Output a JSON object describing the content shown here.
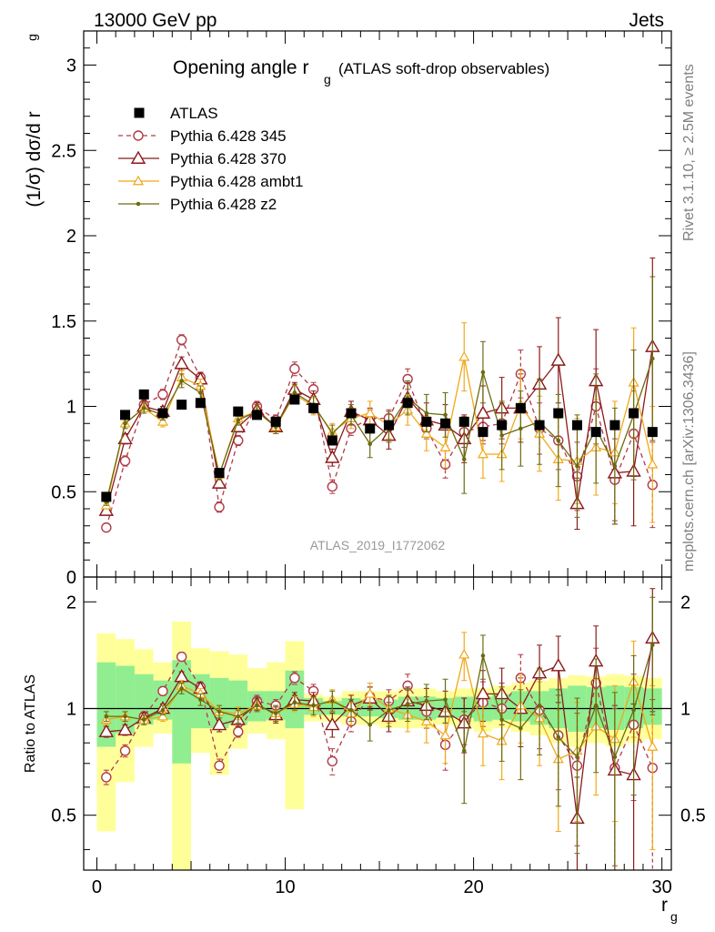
{
  "header": {
    "left": "13000 GeV pp",
    "right": "Jets",
    "side_top": "Rivet 3.1.10, ≥ 2.5M events",
    "side_bottom": "mcplots.cern.ch [arXiv:1306.3436]",
    "analysis": "ATLAS_2019_I1772062"
  },
  "colors": {
    "data": "#000000",
    "p345": "#b03a48",
    "p370": "#8b1a1a",
    "ambt1": "#f0a818",
    "z2": "#6b6b10",
    "band_inner": "#90ee90",
    "band_outer": "#ffff99"
  },
  "chart_data": [
    {
      "type": "scatter",
      "title_main": "Opening angle r",
      "title_sub": "g",
      "title_tail": "(ATLAS soft-drop observables)",
      "ylabel": "(1/σ) dσ/d r",
      "ylabel_sub": "g",
      "xlim": [
        -0.7,
        30.5
      ],
      "ylim": [
        0,
        3.2
      ],
      "yticks": [
        0,
        0.5,
        1,
        1.5,
        2,
        2.5,
        3
      ],
      "ytick_labels": [
        "0",
        "0.5",
        "1",
        "1.5",
        "2",
        "2.5",
        "3"
      ],
      "legend_position": "top-left",
      "x": [
        0.5,
        1.5,
        2.5,
        3.5,
        4.5,
        5.5,
        6.5,
        7.5,
        8.5,
        9.5,
        10.5,
        11.5,
        12.5,
        13.5,
        14.5,
        15.5,
        16.5,
        17.5,
        18.5,
        19.5,
        20.5,
        21.5,
        22.5,
        23.5,
        24.5,
        25.5,
        26.5,
        27.5,
        28.5,
        29.5
      ],
      "series": [
        {
          "name": "ATLAS",
          "style": "data",
          "values": [
            0.47,
            0.95,
            1.07,
            0.96,
            1.01,
            1.02,
            0.61,
            0.97,
            0.95,
            0.91,
            1.04,
            0.99,
            0.8,
            0.96,
            0.87,
            0.89,
            1.02,
            0.91,
            0.9,
            0.91,
            0.85,
            0.89,
            0.99,
            0.89,
            0.96,
            0.89,
            0.85,
            0.89,
            0.96,
            0.85
          ]
        },
        {
          "name": "Pythia 6.428 345",
          "style": "p345",
          "values": [
            0.29,
            0.68,
            1.01,
            1.07,
            1.39,
            1.17,
            0.41,
            0.8,
            1.0,
            0.92,
            1.22,
            1.1,
            0.53,
            0.87,
            0.93,
            0.93,
            1.16,
            0.87,
            0.66,
            0.85,
            0.88,
            0.9,
            1.19,
            0.87,
            0.8,
            0.59,
            1.0,
            0.57,
            0.84,
            0.54
          ],
          "errors": [
            0.02,
            0.03,
            0.03,
            0.03,
            0.03,
            0.03,
            0.03,
            0.03,
            0.03,
            0.03,
            0.04,
            0.04,
            0.04,
            0.04,
            0.05,
            0.05,
            0.06,
            0.06,
            0.08,
            0.09,
            0.1,
            0.12,
            0.14,
            0.15,
            0.17,
            0.2,
            0.22,
            0.24,
            0.25,
            0.25
          ]
        },
        {
          "name": "Pythia 6.428 370",
          "style": "p370",
          "values": [
            0.39,
            0.81,
            1.0,
            0.97,
            1.25,
            1.16,
            0.55,
            0.88,
            0.98,
            0.88,
            1.1,
            1.04,
            0.7,
            0.97,
            0.92,
            0.83,
            1.05,
            0.92,
            0.89,
            0.81,
            0.96,
            0.99,
            0.99,
            1.13,
            1.27,
            0.43,
            1.15,
            0.61,
            0.62,
            1.35
          ],
          "errors": [
            0.02,
            0.03,
            0.03,
            0.03,
            0.04,
            0.04,
            0.03,
            0.03,
            0.04,
            0.04,
            0.04,
            0.05,
            0.05,
            0.06,
            0.07,
            0.08,
            0.09,
            0.1,
            0.12,
            0.14,
            0.16,
            0.18,
            0.2,
            0.22,
            0.25,
            0.15,
            0.3,
            0.3,
            0.32,
            0.52
          ]
        },
        {
          "name": "Pythia 6.428 ambt1",
          "style": "ambt1",
          "values": [
            0.42,
            0.9,
            0.99,
            0.91,
            1.17,
            1.12,
            0.6,
            0.93,
            0.97,
            0.88,
            1.07,
            1.0,
            0.85,
            0.93,
            0.96,
            0.89,
            0.98,
            0.84,
            0.76,
            1.29,
            0.72,
            0.72,
            1.01,
            0.84,
            0.69,
            0.68,
            0.76,
            0.73,
            1.14,
            0.66
          ],
          "errors": [
            0.02,
            0.03,
            0.03,
            0.03,
            0.04,
            0.04,
            0.03,
            0.03,
            0.04,
            0.04,
            0.05,
            0.05,
            0.05,
            0.06,
            0.07,
            0.08,
            0.09,
            0.1,
            0.12,
            0.2,
            0.14,
            0.16,
            0.2,
            0.22,
            0.24,
            0.25,
            0.28,
            0.3,
            0.32,
            0.34
          ]
        },
        {
          "name": "Pythia 6.428 z2",
          "style": "z2",
          "values": [
            0.44,
            0.9,
            0.99,
            0.95,
            1.15,
            1.08,
            0.6,
            0.92,
            0.97,
            0.88,
            1.08,
            1.01,
            0.84,
            0.95,
            0.78,
            0.88,
            1.05,
            0.96,
            0.95,
            0.69,
            1.2,
            0.83,
            0.87,
            0.91,
            0.8,
            0.65,
            0.87,
            0.65,
            0.95,
            1.28
          ],
          "errors": [
            0.02,
            0.03,
            0.03,
            0.03,
            0.04,
            0.04,
            0.03,
            0.03,
            0.04,
            0.04,
            0.05,
            0.05,
            0.05,
            0.06,
            0.08,
            0.09,
            0.1,
            0.11,
            0.13,
            0.2,
            0.18,
            0.2,
            0.22,
            0.25,
            0.27,
            0.3,
            0.32,
            0.34,
            0.38,
            0.48
          ]
        }
      ]
    },
    {
      "type": "scatter",
      "ylabel": "Ratio to ATLAS",
      "xlabel": "r",
      "xlabel_sub": "g",
      "xlim": [
        -0.7,
        30.5
      ],
      "ylim": [
        0.35,
        2.35
      ],
      "yticks": [
        0.5,
        1,
        2
      ],
      "ytick_labels": [
        "0.5",
        "1",
        "2"
      ],
      "xticks": [
        0,
        10,
        20,
        30
      ],
      "xtick_labels": [
        "0",
        "10",
        "20",
        "30"
      ],
      "x": [
        0.5,
        1.5,
        2.5,
        3.5,
        4.5,
        5.5,
        6.5,
        7.5,
        8.5,
        9.5,
        10.5,
        11.5,
        12.5,
        13.5,
        14.5,
        15.5,
        16.5,
        17.5,
        18.5,
        19.5,
        20.5,
        21.5,
        22.5,
        23.5,
        24.5,
        25.5,
        26.5,
        27.5,
        28.5,
        29.5
      ],
      "band_inner": [
        [
          0.78,
          1.35
        ],
        [
          0.85,
          1.32
        ],
        [
          0.9,
          1.25
        ],
        [
          0.93,
          1.2
        ],
        [
          0.7,
          1.37
        ],
        [
          0.88,
          1.25
        ],
        [
          0.88,
          1.22
        ],
        [
          0.9,
          1.2
        ],
        [
          0.92,
          1.12
        ],
        [
          0.93,
          1.12
        ],
        [
          0.88,
          1.28
        ],
        [
          0.96,
          1.07
        ],
        [
          0.96,
          1.05
        ],
        [
          0.95,
          1.07
        ],
        [
          0.95,
          1.06
        ],
        [
          0.94,
          1.06
        ],
        [
          0.93,
          1.08
        ],
        [
          0.93,
          1.08
        ],
        [
          0.94,
          1.07
        ],
        [
          0.94,
          1.08
        ],
        [
          0.92,
          1.08
        ],
        [
          0.93,
          1.1
        ],
        [
          0.92,
          1.12
        ],
        [
          0.9,
          1.12
        ],
        [
          0.88,
          1.14
        ],
        [
          0.86,
          1.16
        ],
        [
          0.88,
          1.15
        ],
        [
          0.87,
          1.16
        ],
        [
          0.88,
          1.15
        ],
        [
          0.9,
          1.14
        ]
      ],
      "band_outer": [
        [
          0.45,
          1.63
        ],
        [
          0.62,
          1.57
        ],
        [
          0.78,
          1.47
        ],
        [
          0.85,
          1.35
        ],
        [
          0.18,
          1.76
        ],
        [
          0.75,
          1.48
        ],
        [
          0.65,
          1.45
        ],
        [
          0.77,
          1.42
        ],
        [
          0.85,
          1.3
        ],
        [
          0.82,
          1.35
        ],
        [
          0.52,
          1.55
        ],
        [
          0.92,
          1.1
        ],
        [
          0.92,
          1.08
        ],
        [
          0.9,
          1.12
        ],
        [
          0.9,
          1.12
        ],
        [
          0.88,
          1.12
        ],
        [
          0.88,
          1.14
        ],
        [
          0.88,
          1.14
        ],
        [
          0.9,
          1.12
        ],
        [
          0.88,
          1.14
        ],
        [
          0.86,
          1.14
        ],
        [
          0.88,
          1.16
        ],
        [
          0.86,
          1.18
        ],
        [
          0.84,
          1.2
        ],
        [
          0.8,
          1.22
        ],
        [
          0.78,
          1.24
        ],
        [
          0.8,
          1.23
        ],
        [
          0.78,
          1.25
        ],
        [
          0.8,
          1.24
        ],
        [
          0.82,
          1.22
        ]
      ],
      "series": [
        {
          "name": "Pythia 6.428 345",
          "style": "p345",
          "values": [
            0.64,
            0.76,
            0.95,
            1.12,
            1.4,
            1.15,
            0.69,
            0.86,
            1.05,
            1.02,
            1.22,
            1.12,
            0.71,
            0.92,
            1.08,
            1.05,
            1.16,
            0.98,
            0.79,
            0.93,
            1.04,
            1.0,
            1.22,
            0.99,
            0.84,
            0.69,
            1.18,
            0.68,
            0.9,
            0.68
          ],
          "errors": [
            0.03,
            0.03,
            0.03,
            0.03,
            0.04,
            0.04,
            0.03,
            0.03,
            0.04,
            0.04,
            0.05,
            0.05,
            0.06,
            0.06,
            0.07,
            0.08,
            0.09,
            0.1,
            0.12,
            0.14,
            0.15,
            0.18,
            0.2,
            0.22,
            0.25,
            0.28,
            0.3,
            0.32,
            0.35,
            0.38
          ]
        },
        {
          "name": "Pythia 6.428 370",
          "style": "p370",
          "values": [
            0.86,
            0.87,
            0.94,
            1.0,
            1.23,
            1.14,
            0.9,
            0.93,
            1.03,
            0.96,
            1.06,
            1.05,
            0.9,
            1.02,
            1.07,
            0.95,
            1.05,
            1.02,
            0.98,
            0.91,
            1.1,
            1.1,
            1.0,
            1.26,
            1.32,
            0.49,
            1.36,
            0.67,
            0.65,
            1.58
          ],
          "errors": [
            0.03,
            0.03,
            0.03,
            0.03,
            0.04,
            0.04,
            0.04,
            0.04,
            0.04,
            0.05,
            0.05,
            0.06,
            0.07,
            0.07,
            0.08,
            0.09,
            0.1,
            0.12,
            0.14,
            0.16,
            0.18,
            0.2,
            0.22,
            0.25,
            0.28,
            0.15,
            0.35,
            0.35,
            0.38,
            0.6
          ]
        },
        {
          "name": "Pythia 6.428 ambt1",
          "style": "ambt1",
          "values": [
            0.93,
            0.95,
            0.93,
            0.95,
            1.16,
            1.1,
            0.98,
            0.97,
            1.02,
            0.97,
            1.03,
            1.01,
            1.06,
            0.97,
            1.1,
            1.0,
            0.96,
            0.92,
            0.84,
            1.42,
            0.85,
            0.81,
            1.02,
            0.94,
            0.72,
            0.76,
            0.89,
            0.82,
            1.19,
            0.78
          ],
          "errors": [
            0.03,
            0.03,
            0.03,
            0.03,
            0.04,
            0.04,
            0.04,
            0.04,
            0.04,
            0.05,
            0.05,
            0.06,
            0.07,
            0.07,
            0.08,
            0.09,
            0.1,
            0.12,
            0.14,
            0.22,
            0.16,
            0.18,
            0.22,
            0.25,
            0.27,
            0.28,
            0.32,
            0.34,
            0.36,
            0.38
          ]
        },
        {
          "name": "Pythia 6.428 z2",
          "style": "z2",
          "values": [
            0.95,
            0.95,
            0.93,
            0.99,
            1.14,
            1.06,
            0.98,
            0.95,
            1.02,
            0.97,
            1.04,
            1.02,
            1.05,
            0.99,
            0.9,
            0.99,
            1.03,
            1.05,
            1.06,
            0.76,
            1.41,
            0.93,
            0.88,
            1.02,
            0.83,
            0.73,
            1.02,
            0.73,
            0.99,
            1.51
          ],
          "errors": [
            0.03,
            0.03,
            0.03,
            0.03,
            0.04,
            0.04,
            0.04,
            0.04,
            0.04,
            0.05,
            0.05,
            0.06,
            0.07,
            0.07,
            0.09,
            0.1,
            0.11,
            0.12,
            0.15,
            0.22,
            0.2,
            0.22,
            0.25,
            0.28,
            0.3,
            0.34,
            0.36,
            0.38,
            0.42,
            0.55
          ]
        }
      ]
    }
  ]
}
